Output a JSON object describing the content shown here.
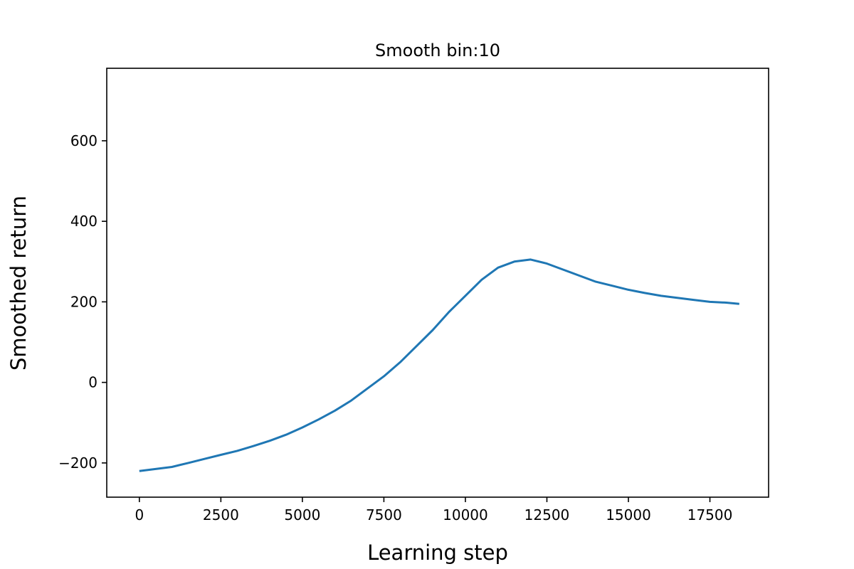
{
  "chart_data": {
    "type": "line",
    "title": "Smooth bin:10",
    "xlabel": "Learning step",
    "ylabel": "Smoothed return",
    "xlim": [
      -1000,
      19300
    ],
    "ylim": [
      -285,
      780
    ],
    "xticks": [
      0,
      2500,
      5000,
      7500,
      10000,
      12500,
      15000,
      17500
    ],
    "xtick_labels": [
      "0",
      "2500",
      "5000",
      "7500",
      "10000",
      "12500",
      "15000",
      "17500"
    ],
    "yticks": [
      -200,
      0,
      200,
      400,
      600
    ],
    "ytick_labels": [
      "−200",
      "0",
      "200",
      "400",
      "600"
    ],
    "grid": false,
    "line_color": "#1f77b4",
    "series": [
      {
        "x": [
          0,
          500,
          1000,
          1500,
          2000,
          2500,
          3000,
          3500,
          4000,
          4500,
          5000,
          5500,
          6000,
          6500,
          7000,
          7500,
          8000,
          8500,
          9000,
          9500,
          10000,
          10500,
          11000,
          11500,
          12000,
          12500,
          13000,
          13500,
          14000,
          14500,
          15000,
          15500,
          16000,
          16500,
          17000,
          17500,
          18000,
          18400
        ],
        "values": [
          -220,
          -215,
          -210,
          -200,
          -190,
          -180,
          -170,
          -158,
          -145,
          -130,
          -112,
          -92,
          -70,
          -45,
          -15,
          15,
          50,
          90,
          130,
          175,
          215,
          255,
          285,
          300,
          305,
          295,
          280,
          265,
          250,
          240,
          230,
          222,
          215,
          210,
          205,
          200,
          198,
          195
        ]
      }
    ]
  }
}
